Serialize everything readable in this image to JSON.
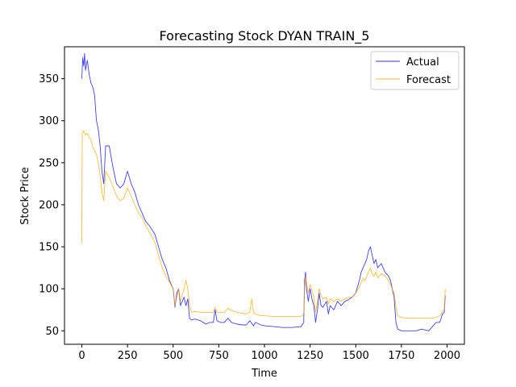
{
  "chart_data": {
    "type": "line",
    "title": "Forecasting Stock DYAN TRAIN_5",
    "xlabel": "Time",
    "ylabel": "Stock Price",
    "xlim": [
      -95,
      2095
    ],
    "ylim": [
      34,
      388
    ],
    "xticks": [
      0,
      250,
      500,
      750,
      1000,
      1250,
      1500,
      1750,
      2000
    ],
    "yticks": [
      50,
      100,
      150,
      200,
      250,
      300,
      350
    ],
    "grid": false,
    "legend_position": "top-right",
    "series": [
      {
        "name": "Actual",
        "color": "#0000ff",
        "points": [
          [
            0,
            350
          ],
          [
            5,
            375
          ],
          [
            10,
            365
          ],
          [
            15,
            380
          ],
          [
            20,
            360
          ],
          [
            30,
            372
          ],
          [
            40,
            355
          ],
          [
            50,
            345
          ],
          [
            60,
            340
          ],
          [
            70,
            330
          ],
          [
            80,
            300
          ],
          [
            90,
            290
          ],
          [
            100,
            270
          ],
          [
            110,
            240
          ],
          [
            120,
            225
          ],
          [
            130,
            270
          ],
          [
            150,
            270
          ],
          [
            170,
            245
          ],
          [
            190,
            225
          ],
          [
            210,
            220
          ],
          [
            230,
            225
          ],
          [
            250,
            240
          ],
          [
            270,
            225
          ],
          [
            290,
            215
          ],
          [
            310,
            200
          ],
          [
            330,
            190
          ],
          [
            350,
            180
          ],
          [
            370,
            175
          ],
          [
            400,
            165
          ],
          [
            420,
            150
          ],
          [
            440,
            135
          ],
          [
            460,
            125
          ],
          [
            480,
            110
          ],
          [
            500,
            100
          ],
          [
            510,
            78
          ],
          [
            520,
            95
          ],
          [
            530,
            100
          ],
          [
            540,
            80
          ],
          [
            560,
            90
          ],
          [
            570,
            80
          ],
          [
            580,
            88
          ],
          [
            590,
            65
          ],
          [
            600,
            63
          ],
          [
            620,
            64
          ],
          [
            650,
            62
          ],
          [
            680,
            58
          ],
          [
            700,
            60
          ],
          [
            720,
            60
          ],
          [
            730,
            75
          ],
          [
            740,
            62
          ],
          [
            760,
            60
          ],
          [
            780,
            60
          ],
          [
            800,
            65
          ],
          [
            820,
            60
          ],
          [
            850,
            58
          ],
          [
            880,
            57
          ],
          [
            900,
            57
          ],
          [
            920,
            62
          ],
          [
            940,
            56
          ],
          [
            950,
            60
          ],
          [
            980,
            57
          ],
          [
            1000,
            56
          ],
          [
            1050,
            55
          ],
          [
            1100,
            54
          ],
          [
            1150,
            54
          ],
          [
            1200,
            55
          ],
          [
            1215,
            60
          ],
          [
            1220,
            110
          ],
          [
            1225,
            120
          ],
          [
            1230,
            100
          ],
          [
            1240,
            85
          ],
          [
            1250,
            100
          ],
          [
            1260,
            88
          ],
          [
            1270,
            80
          ],
          [
            1280,
            60
          ],
          [
            1290,
            75
          ],
          [
            1300,
            95
          ],
          [
            1310,
            80
          ],
          [
            1320,
            78
          ],
          [
            1340,
            85
          ],
          [
            1350,
            70
          ],
          [
            1360,
            80
          ],
          [
            1380,
            75
          ],
          [
            1400,
            85
          ],
          [
            1420,
            80
          ],
          [
            1440,
            85
          ],
          [
            1460,
            87
          ],
          [
            1480,
            90
          ],
          [
            1500,
            95
          ],
          [
            1520,
            110
          ],
          [
            1530,
            120
          ],
          [
            1540,
            125
          ],
          [
            1550,
            130
          ],
          [
            1560,
            135
          ],
          [
            1570,
            145
          ],
          [
            1580,
            150
          ],
          [
            1590,
            140
          ],
          [
            1600,
            130
          ],
          [
            1610,
            135
          ],
          [
            1620,
            125
          ],
          [
            1640,
            130
          ],
          [
            1660,
            120
          ],
          [
            1680,
            115
          ],
          [
            1690,
            110
          ],
          [
            1700,
            100
          ],
          [
            1710,
            90
          ],
          [
            1720,
            60
          ],
          [
            1730,
            52
          ],
          [
            1750,
            50
          ],
          [
            1770,
            50
          ],
          [
            1800,
            50
          ],
          [
            1830,
            50
          ],
          [
            1860,
            52
          ],
          [
            1900,
            50
          ],
          [
            1920,
            55
          ],
          [
            1940,
            60
          ],
          [
            1960,
            60
          ],
          [
            1975,
            70
          ],
          [
            1985,
            72
          ],
          [
            1990,
            92
          ]
        ]
      },
      {
        "name": "Forecast",
        "color": "#ffa500",
        "points": [
          [
            0,
            155
          ],
          [
            2,
            285
          ],
          [
            10,
            288
          ],
          [
            20,
            283
          ],
          [
            30,
            285
          ],
          [
            40,
            280
          ],
          [
            50,
            278
          ],
          [
            60,
            268
          ],
          [
            70,
            265
          ],
          [
            80,
            260
          ],
          [
            90,
            250
          ],
          [
            100,
            235
          ],
          [
            110,
            215
          ],
          [
            120,
            205
          ],
          [
            130,
            240
          ],
          [
            150,
            232
          ],
          [
            170,
            222
          ],
          [
            190,
            210
          ],
          [
            210,
            205
          ],
          [
            230,
            208
          ],
          [
            250,
            220
          ],
          [
            270,
            210
          ],
          [
            290,
            200
          ],
          [
            310,
            190
          ],
          [
            330,
            185
          ],
          [
            350,
            175
          ],
          [
            370,
            168
          ],
          [
            400,
            155
          ],
          [
            420,
            140
          ],
          [
            440,
            125
          ],
          [
            460,
            115
          ],
          [
            480,
            108
          ],
          [
            500,
            100
          ],
          [
            510,
            80
          ],
          [
            520,
            90
          ],
          [
            530,
            100
          ],
          [
            540,
            85
          ],
          [
            560,
            100
          ],
          [
            570,
            110
          ],
          [
            580,
            100
          ],
          [
            590,
            80
          ],
          [
            600,
            72
          ],
          [
            620,
            73
          ],
          [
            650,
            72
          ],
          [
            680,
            72
          ],
          [
            700,
            72
          ],
          [
            720,
            72
          ],
          [
            730,
            78
          ],
          [
            740,
            72
          ],
          [
            760,
            72
          ],
          [
            780,
            72
          ],
          [
            800,
            77
          ],
          [
            820,
            74
          ],
          [
            850,
            72
          ],
          [
            880,
            71
          ],
          [
            900,
            70
          ],
          [
            920,
            72
          ],
          [
            930,
            88
          ],
          [
            940,
            72
          ],
          [
            950,
            70
          ],
          [
            980,
            68
          ],
          [
            1000,
            68
          ],
          [
            1050,
            67
          ],
          [
            1100,
            67
          ],
          [
            1150,
            67
          ],
          [
            1200,
            67
          ],
          [
            1215,
            70
          ],
          [
            1220,
            100
          ],
          [
            1225,
            115
          ],
          [
            1230,
            108
          ],
          [
            1240,
            95
          ],
          [
            1250,
            105
          ],
          [
            1260,
            98
          ],
          [
            1270,
            90
          ],
          [
            1280,
            72
          ],
          [
            1290,
            85
          ],
          [
            1300,
            100
          ],
          [
            1310,
            92
          ],
          [
            1320,
            88
          ],
          [
            1340,
            90
          ],
          [
            1350,
            82
          ],
          [
            1360,
            88
          ],
          [
            1380,
            85
          ],
          [
            1400,
            88
          ],
          [
            1420,
            85
          ],
          [
            1440,
            88
          ],
          [
            1460,
            90
          ],
          [
            1480,
            90
          ],
          [
            1500,
            95
          ],
          [
            1520,
            102
          ],
          [
            1530,
            108
          ],
          [
            1540,
            112
          ],
          [
            1550,
            110
          ],
          [
            1560,
            115
          ],
          [
            1570,
            120
          ],
          [
            1580,
            125
          ],
          [
            1590,
            118
          ],
          [
            1600,
            115
          ],
          [
            1610,
            120
          ],
          [
            1620,
            113
          ],
          [
            1640,
            118
          ],
          [
            1660,
            115
          ],
          [
            1680,
            110
          ],
          [
            1690,
            105
          ],
          [
            1700,
            100
          ],
          [
            1710,
            95
          ],
          [
            1720,
            78
          ],
          [
            1730,
            68
          ],
          [
            1750,
            66
          ],
          [
            1770,
            65
          ],
          [
            1800,
            65
          ],
          [
            1830,
            65
          ],
          [
            1860,
            65
          ],
          [
            1900,
            65
          ],
          [
            1920,
            65
          ],
          [
            1940,
            66
          ],
          [
            1960,
            68
          ],
          [
            1975,
            72
          ],
          [
            1985,
            76
          ],
          [
            1990,
            100
          ]
        ]
      }
    ]
  }
}
